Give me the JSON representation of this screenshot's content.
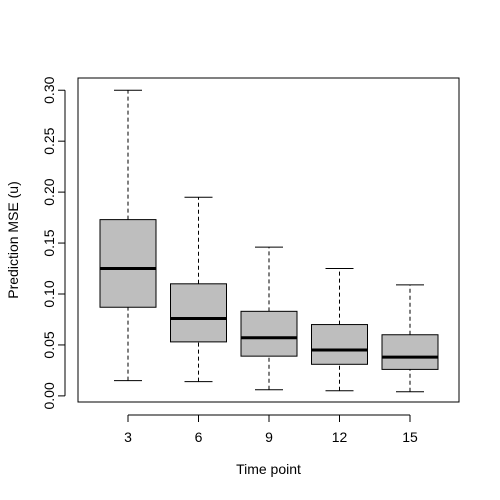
{
  "chart_data": {
    "type": "box",
    "title": "",
    "xlabel": "Time point",
    "ylabel": "Prediction MSE (u)",
    "ylim": [
      -0.006,
      0.312
    ],
    "yticks": [
      0.0,
      0.05,
      0.1,
      0.15,
      0.2,
      0.25,
      0.3
    ],
    "ytick_labels": [
      "0.00",
      "0.05",
      "0.10",
      "0.15",
      "0.20",
      "0.25",
      "0.30"
    ],
    "categories": [
      "3",
      "6",
      "9",
      "12",
      "15"
    ],
    "boxes": [
      {
        "category": "3",
        "whisker_low": 0.015,
        "q1": 0.087,
        "median": 0.125,
        "q3": 0.173,
        "whisker_high": 0.3
      },
      {
        "category": "6",
        "whisker_low": 0.014,
        "q1": 0.053,
        "median": 0.076,
        "q3": 0.11,
        "whisker_high": 0.195
      },
      {
        "category": "9",
        "whisker_low": 0.006,
        "q1": 0.039,
        "median": 0.057,
        "q3": 0.083,
        "whisker_high": 0.146
      },
      {
        "category": "12",
        "whisker_low": 0.005,
        "q1": 0.031,
        "median": 0.045,
        "q3": 0.07,
        "whisker_high": 0.125
      },
      {
        "category": "15",
        "whisker_low": 0.004,
        "q1": 0.026,
        "median": 0.038,
        "q3": 0.06,
        "whisker_high": 0.109
      }
    ],
    "grid": false,
    "legend": "none",
    "box_fill": "#bebebe",
    "line_color": "#000000"
  }
}
